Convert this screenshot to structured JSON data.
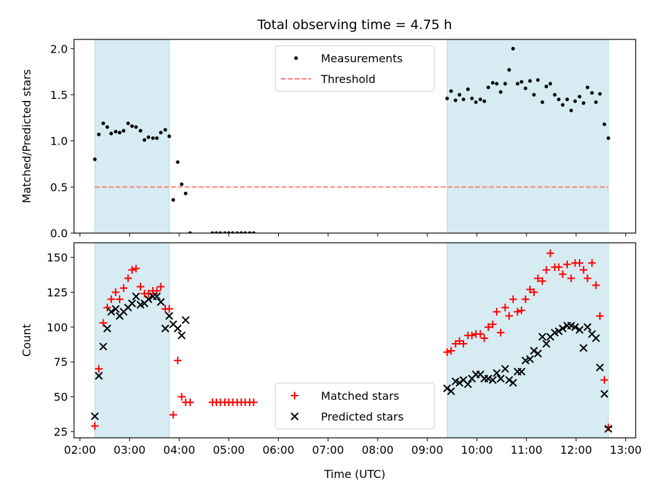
{
  "chart_data": [
    {
      "type": "scatter",
      "title": "Total observing time = 4.75 h",
      "xlabel": "",
      "ylabel": "Matched/Predicted stars",
      "ylim": [
        0,
        2.1
      ],
      "yticks": [
        "0.0",
        "0.5",
        "1.0",
        "1.5",
        "2.0"
      ],
      "ytick_values": [
        0,
        0.5,
        1.0,
        1.5,
        2.0
      ],
      "xlim_hours": [
        1.88,
        13.2
      ],
      "shaded_intervals": [
        [
          2.3,
          3.8
        ],
        [
          9.4,
          12.65
        ]
      ],
      "threshold": {
        "name": "Threshold",
        "value": 0.5,
        "x_range": [
          2.3,
          12.65
        ],
        "color": "#ff7f7f"
      },
      "legend": {
        "placement": "top-center",
        "entries": [
          "Measurements",
          "Threshold"
        ]
      },
      "series": [
        {
          "name": "Measurements",
          "color": "#000000",
          "marker": "dot",
          "points": [
            [
              2.3,
              0.8
            ],
            [
              2.38,
              1.07
            ],
            [
              2.47,
              1.19
            ],
            [
              2.55,
              1.15
            ],
            [
              2.63,
              1.08
            ],
            [
              2.72,
              1.1
            ],
            [
              2.8,
              1.09
            ],
            [
              2.88,
              1.11
            ],
            [
              2.97,
              1.19
            ],
            [
              3.05,
              1.16
            ],
            [
              3.13,
              1.15
            ],
            [
              3.22,
              1.11
            ],
            [
              3.3,
              1.01
            ],
            [
              3.38,
              1.04
            ],
            [
              3.47,
              1.03
            ],
            [
              3.55,
              1.03
            ],
            [
              3.63,
              1.09
            ],
            [
              3.72,
              1.12
            ],
            [
              3.8,
              1.05
            ],
            [
              3.88,
              0.36
            ],
            [
              3.97,
              0.77
            ],
            [
              4.05,
              0.53
            ],
            [
              4.13,
              0.43
            ],
            [
              4.22,
              0.0
            ],
            [
              4.67,
              0.0
            ],
            [
              4.75,
              0.0
            ],
            [
              4.83,
              0.0
            ],
            [
              4.92,
              0.0
            ],
            [
              5.0,
              0.0
            ],
            [
              5.08,
              0.0
            ],
            [
              5.17,
              0.0
            ],
            [
              5.25,
              0.0
            ],
            [
              5.33,
              0.0
            ],
            [
              5.42,
              0.0
            ],
            [
              5.5,
              0.0
            ],
            [
              9.4,
              1.46
            ],
            [
              9.48,
              1.54
            ],
            [
              9.57,
              1.44
            ],
            [
              9.65,
              1.5
            ],
            [
              9.73,
              1.45
            ],
            [
              9.82,
              1.56
            ],
            [
              9.9,
              1.46
            ],
            [
              9.98,
              1.42
            ],
            [
              10.07,
              1.45
            ],
            [
              10.15,
              1.43
            ],
            [
              10.23,
              1.58
            ],
            [
              10.32,
              1.63
            ],
            [
              10.4,
              1.62
            ],
            [
              10.48,
              1.53
            ],
            [
              10.57,
              1.62
            ],
            [
              10.65,
              1.77
            ],
            [
              10.73,
              2.0
            ],
            [
              10.82,
              1.62
            ],
            [
              10.9,
              1.64
            ],
            [
              10.98,
              1.57
            ],
            [
              11.07,
              1.65
            ],
            [
              11.15,
              1.5
            ],
            [
              11.23,
              1.66
            ],
            [
              11.32,
              1.42
            ],
            [
              11.4,
              1.59
            ],
            [
              11.48,
              1.62
            ],
            [
              11.57,
              1.5
            ],
            [
              11.65,
              1.45
            ],
            [
              11.73,
              1.39
            ],
            [
              11.82,
              1.45
            ],
            [
              11.9,
              1.33
            ],
            [
              11.98,
              1.43
            ],
            [
              12.07,
              1.48
            ],
            [
              12.15,
              1.41
            ],
            [
              12.23,
              1.58
            ],
            [
              12.32,
              1.52
            ],
            [
              12.4,
              1.42
            ],
            [
              12.48,
              1.51
            ],
            [
              12.57,
              1.18
            ],
            [
              12.65,
              1.03
            ]
          ]
        }
      ]
    },
    {
      "type": "scatter",
      "title": "",
      "xlabel": "Time (UTC)",
      "ylabel": "Count",
      "ylim": [
        20.5,
        160.5
      ],
      "yticks": [
        "25",
        "50",
        "75",
        "100",
        "125",
        "150"
      ],
      "ytick_values": [
        25,
        50,
        75,
        100,
        125,
        150
      ],
      "xlim_hours": [
        1.88,
        13.2
      ],
      "xticks": [
        "02:00",
        "03:00",
        "04:00",
        "05:00",
        "06:00",
        "07:00",
        "08:00",
        "09:00",
        "10:00",
        "11:00",
        "12:00",
        "13:00"
      ],
      "xtick_values": [
        2,
        3,
        4,
        5,
        6,
        7,
        8,
        9,
        10,
        11,
        12,
        13
      ],
      "shaded_intervals": [
        [
          2.3,
          3.8
        ],
        [
          9.4,
          12.65
        ]
      ],
      "legend": {
        "placement": "bottom-center",
        "entries": [
          "Matched stars",
          "Predicted stars"
        ]
      },
      "series": [
        {
          "name": "Matched stars",
          "color": "#ff0000",
          "marker": "plus",
          "points": [
            [
              2.3,
              29
            ],
            [
              2.38,
              70
            ],
            [
              2.47,
              103
            ],
            [
              2.55,
              114
            ],
            [
              2.63,
              120
            ],
            [
              2.72,
              125
            ],
            [
              2.8,
              120
            ],
            [
              2.88,
              128
            ],
            [
              2.97,
              135
            ],
            [
              3.05,
              141
            ],
            [
              3.13,
              142
            ],
            [
              3.22,
              129
            ],
            [
              3.3,
              124
            ],
            [
              3.38,
              124
            ],
            [
              3.47,
              126
            ],
            [
              3.55,
              126
            ],
            [
              3.63,
              129
            ],
            [
              3.72,
              113
            ],
            [
              3.8,
              113
            ],
            [
              3.88,
              37
            ],
            [
              3.97,
              76
            ],
            [
              4.05,
              50
            ],
            [
              4.13,
              46
            ],
            [
              4.22,
              46
            ],
            [
              4.67,
              46
            ],
            [
              4.75,
              46
            ],
            [
              4.83,
              46
            ],
            [
              4.92,
              46
            ],
            [
              5.0,
              46
            ],
            [
              5.08,
              46
            ],
            [
              5.17,
              46
            ],
            [
              5.25,
              46
            ],
            [
              5.33,
              46
            ],
            [
              5.42,
              46
            ],
            [
              5.5,
              46
            ],
            [
              9.4,
              82
            ],
            [
              9.48,
              83
            ],
            [
              9.57,
              88
            ],
            [
              9.65,
              90
            ],
            [
              9.73,
              88
            ],
            [
              9.82,
              94
            ],
            [
              9.9,
              94
            ],
            [
              9.98,
              95
            ],
            [
              10.07,
              95
            ],
            [
              10.15,
              92
            ],
            [
              10.23,
              100
            ],
            [
              10.32,
              102
            ],
            [
              10.4,
              111
            ],
            [
              10.48,
              96
            ],
            [
              10.57,
              114
            ],
            [
              10.65,
              108
            ],
            [
              10.73,
              120
            ],
            [
              10.82,
              111
            ],
            [
              10.9,
              112
            ],
            [
              10.98,
              120
            ],
            [
              11.07,
              127
            ],
            [
              11.15,
              125
            ],
            [
              11.23,
              135
            ],
            [
              11.32,
              133
            ],
            [
              11.4,
              141
            ],
            [
              11.48,
              153
            ],
            [
              11.57,
              143
            ],
            [
              11.65,
              143
            ],
            [
              11.73,
              138
            ],
            [
              11.82,
              145
            ],
            [
              11.9,
              135
            ],
            [
              11.98,
              146
            ],
            [
              12.07,
              146
            ],
            [
              12.15,
              141
            ],
            [
              12.23,
              135
            ],
            [
              12.32,
              146
            ],
            [
              12.4,
              130
            ],
            [
              12.48,
              108
            ],
            [
              12.57,
              62
            ],
            [
              12.65,
              28
            ]
          ]
        },
        {
          "name": "Predicted stars",
          "color": "#000000",
          "marker": "x",
          "points": [
            [
              2.3,
              36
            ],
            [
              2.38,
              65
            ],
            [
              2.47,
              86
            ],
            [
              2.55,
              99
            ],
            [
              2.63,
              111
            ],
            [
              2.72,
              113
            ],
            [
              2.8,
              108
            ],
            [
              2.88,
              111
            ],
            [
              2.97,
              114
            ],
            [
              3.05,
              117
            ],
            [
              3.13,
              122
            ],
            [
              3.22,
              116
            ],
            [
              3.3,
              117
            ],
            [
              3.38,
              120
            ],
            [
              3.47,
              122
            ],
            [
              3.55,
              122
            ],
            [
              3.63,
              118
            ],
            [
              3.72,
              99
            ],
            [
              3.8,
              108
            ],
            [
              3.88,
              102
            ],
            [
              3.97,
              99
            ],
            [
              4.05,
              94
            ],
            [
              4.13,
              105
            ],
            [
              9.4,
              56
            ],
            [
              9.48,
              54
            ],
            [
              9.57,
              61
            ],
            [
              9.65,
              60
            ],
            [
              9.73,
              62
            ],
            [
              9.82,
              59
            ],
            [
              9.9,
              63
            ],
            [
              9.98,
              66
            ],
            [
              10.07,
              66
            ],
            [
              10.15,
              63
            ],
            [
              10.23,
              63
            ],
            [
              10.32,
              62
            ],
            [
              10.4,
              67
            ],
            [
              10.48,
              63
            ],
            [
              10.57,
              70
            ],
            [
              10.65,
              62
            ],
            [
              10.73,
              60
            ],
            [
              10.82,
              68
            ],
            [
              10.9,
              68
            ],
            [
              10.98,
              76
            ],
            [
              11.07,
              77
            ],
            [
              11.15,
              83
            ],
            [
              11.23,
              81
            ],
            [
              11.32,
              93
            ],
            [
              11.4,
              88
            ],
            [
              11.48,
              93
            ],
            [
              11.57,
              96
            ],
            [
              11.65,
              97
            ],
            [
              11.73,
              99
            ],
            [
              11.82,
              101
            ],
            [
              11.9,
              101
            ],
            [
              11.98,
              100
            ],
            [
              12.07,
              98
            ],
            [
              12.15,
              85
            ],
            [
              12.23,
              100
            ],
            [
              12.32,
              95
            ],
            [
              12.4,
              92
            ],
            [
              12.48,
              71
            ],
            [
              12.57,
              52
            ],
            [
              12.65,
              27
            ]
          ]
        }
      ]
    }
  ]
}
